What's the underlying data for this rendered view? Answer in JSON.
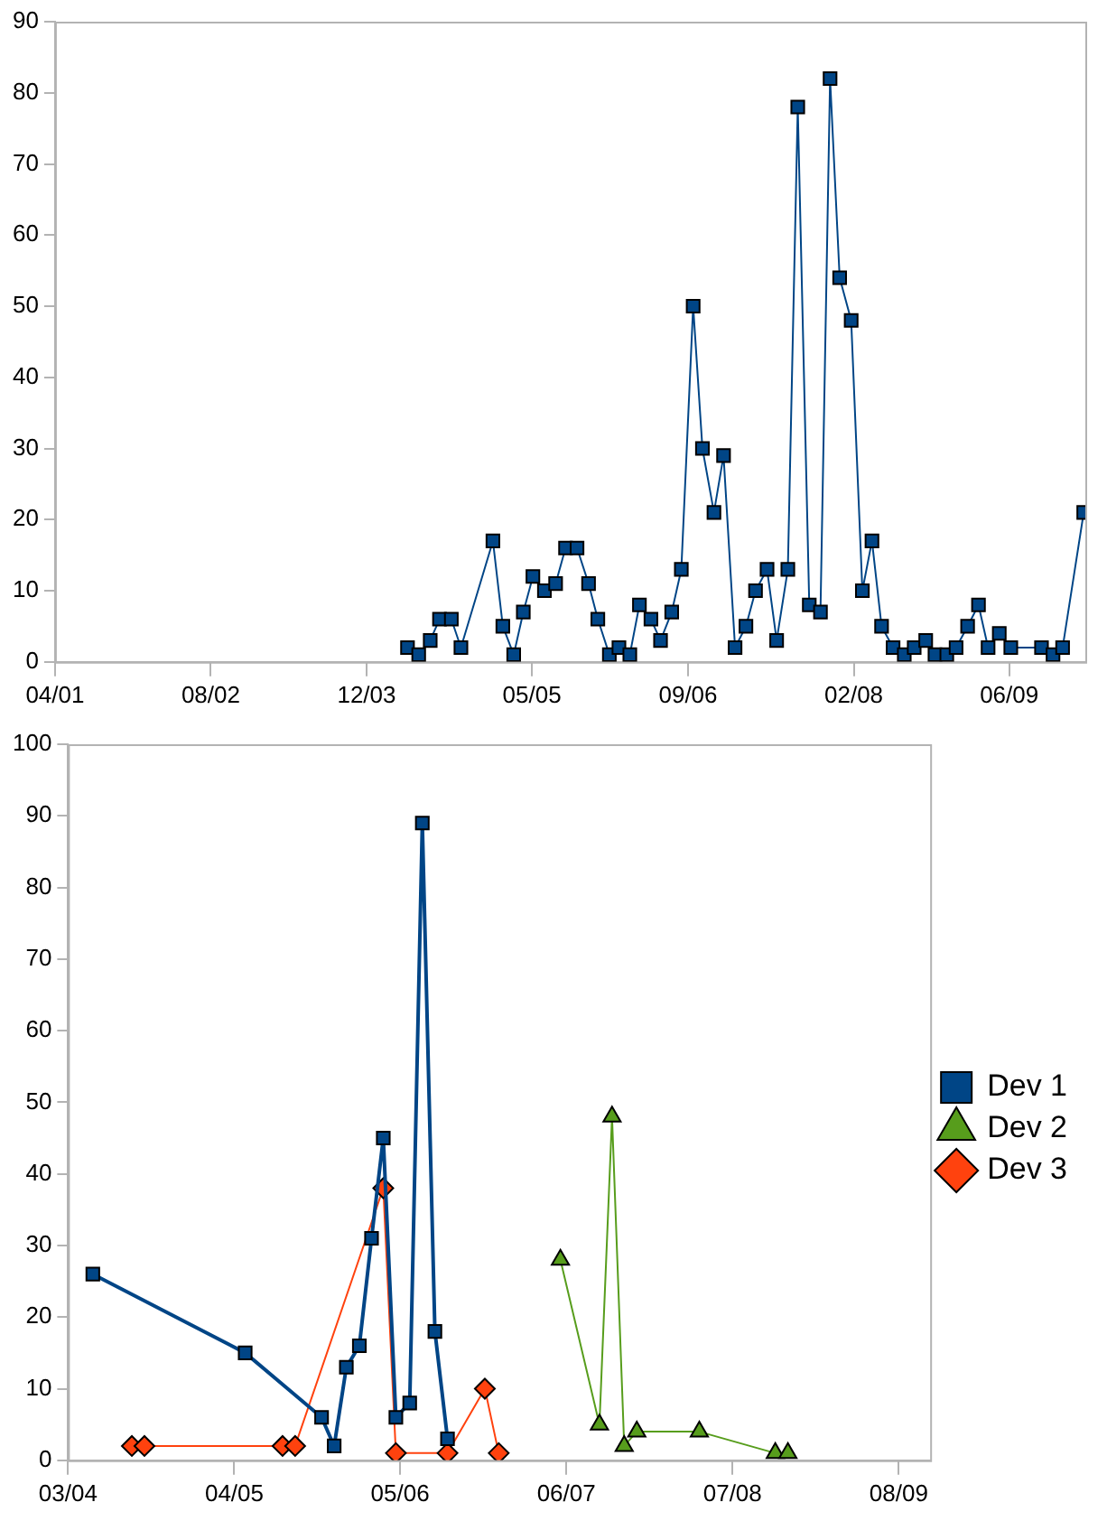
{
  "chart_data": [
    {
      "type": "line",
      "marker": "square",
      "grid": false,
      "xlim": [
        "2001-04-01",
        "2010-01-25"
      ],
      "xticks": [
        {
          "value": "2001-04-01",
          "label": "04/01"
        },
        {
          "value": "2002-08-01",
          "label": "08/02"
        },
        {
          "value": "2003-12-01",
          "label": "12/03"
        },
        {
          "value": "2005-05-01",
          "label": "05/05"
        },
        {
          "value": "2006-09-01",
          "label": "09/06"
        },
        {
          "value": "2008-02-01",
          "label": "02/08"
        },
        {
          "value": "2009-06-01",
          "label": "06/09"
        }
      ],
      "ylim": [
        0,
        90
      ],
      "yticks": [
        0,
        10,
        20,
        30,
        40,
        50,
        60,
        70,
        80,
        90
      ],
      "series": [
        {
          "color": "#004586",
          "x": [
            "2004-04-07",
            "2004-05-12",
            "2004-06-17",
            "2004-07-16",
            "2004-08-22",
            "2004-09-21",
            "2004-12-30",
            "2005-01-30",
            "2005-03-05",
            "2005-04-04",
            "2005-05-04",
            "2005-06-09",
            "2005-07-14",
            "2005-08-14",
            "2005-09-19",
            "2005-10-25",
            "2005-11-23",
            "2005-12-29",
            "2006-01-28",
            "2006-03-03",
            "2006-04-02",
            "2006-05-08",
            "2006-06-07",
            "2006-07-12",
            "2006-08-11",
            "2006-09-17",
            "2006-10-16",
            "2006-11-21",
            "2006-12-21",
            "2007-01-26",
            "2007-03-01",
            "2007-03-31",
            "2007-05-06",
            "2007-06-05",
            "2007-07-10",
            "2007-08-10",
            "2007-09-15",
            "2007-10-20",
            "2007-11-19",
            "2007-12-19",
            "2008-01-24",
            "2008-02-28",
            "2008-03-29",
            "2008-04-28",
            "2008-06-03",
            "2008-07-08",
            "2008-08-08",
            "2008-09-13",
            "2008-10-12",
            "2008-11-18",
            "2008-12-17",
            "2009-01-22",
            "2009-02-25",
            "2009-03-27",
            "2009-05-01",
            "2009-06-06",
            "2009-09-10",
            "2009-10-16",
            "2009-11-15",
            "2010-01-20"
          ],
          "values": [
            2,
            1,
            3,
            6,
            6,
            2,
            17,
            5,
            1,
            7,
            12,
            10,
            11,
            16,
            16,
            11,
            6,
            1,
            2,
            1,
            8,
            6,
            3,
            7,
            13,
            50,
            30,
            21,
            29,
            2,
            5,
            10,
            13,
            3,
            13,
            78,
            8,
            7,
            82,
            54,
            48,
            10,
            17,
            5,
            2,
            1,
            2,
            3,
            1,
            1,
            2,
            5,
            8,
            2,
            4,
            2,
            2,
            1,
            2,
            21
          ]
        }
      ]
    },
    {
      "type": "line",
      "grid": false,
      "legend": "right",
      "xlim": [
        "2004-03-01",
        "2009-10-15"
      ],
      "xticks": [
        {
          "value": "2004-03-01",
          "label": "03/04"
        },
        {
          "value": "2005-04-01",
          "label": "04/05"
        },
        {
          "value": "2006-05-01",
          "label": "05/06"
        },
        {
          "value": "2007-06-01",
          "label": "06/07"
        },
        {
          "value": "2008-07-01",
          "label": "07/08"
        },
        {
          "value": "2009-08-01",
          "label": "08/09"
        }
      ],
      "ylim": [
        0,
        100
      ],
      "yticks": [
        0,
        10,
        20,
        30,
        40,
        50,
        60,
        70,
        80,
        90,
        100
      ],
      "series": [
        {
          "name": "Dev 1",
          "color": "#004586",
          "marker": "square",
          "x": [
            "2004-04-29",
            "2005-04-27",
            "2005-10-26",
            "2005-11-25",
            "2005-12-24",
            "2006-01-24",
            "2006-02-22",
            "2006-03-22",
            "2006-04-21",
            "2006-05-24",
            "2006-06-23",
            "2006-07-23",
            "2006-08-22"
          ],
          "values": [
            26,
            15,
            6,
            2,
            13,
            16,
            31,
            45,
            6,
            8,
            89,
            18,
            3
          ]
        },
        {
          "name": "Dev 2",
          "color": "#579d1c",
          "marker": "triangle",
          "x": [
            "2007-05-18",
            "2007-08-19",
            "2007-09-18",
            "2007-10-17",
            "2007-11-16",
            "2008-04-13",
            "2008-10-11",
            "2008-11-10"
          ],
          "values": [
            28,
            5,
            48,
            2,
            4,
            4,
            1,
            1
          ]
        },
        {
          "name": "Dev 3",
          "color": "#ff420e",
          "marker": "diamond",
          "x": [
            "2004-07-31",
            "2004-08-30",
            "2005-07-25",
            "2005-08-24",
            "2006-03-22",
            "2006-04-21",
            "2006-08-22",
            "2006-11-19",
            "2006-12-22"
          ],
          "values": [
            2,
            2,
            2,
            2,
            38,
            1,
            1,
            10,
            1
          ]
        }
      ]
    }
  ]
}
